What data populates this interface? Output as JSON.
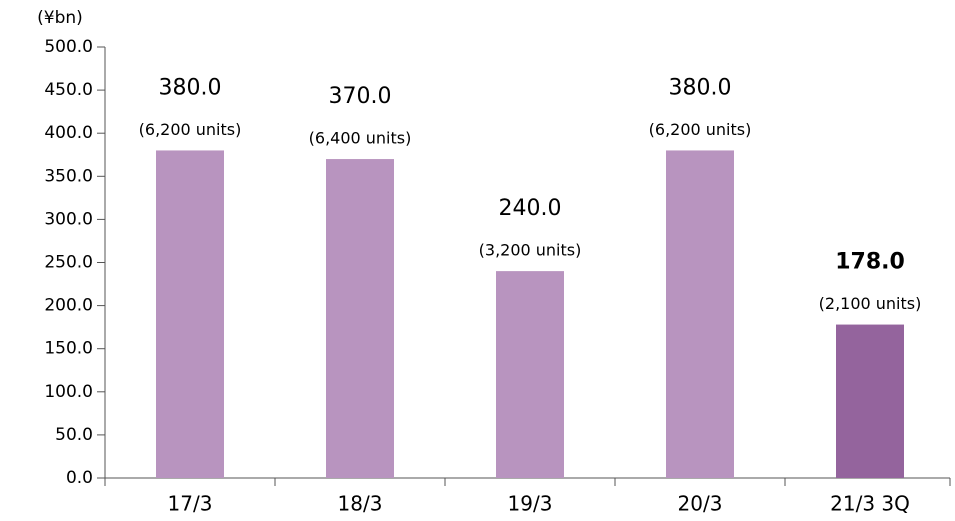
{
  "chart_data": {
    "type": "bar",
    "y_label": "(¥bn)",
    "categories": [
      "17/3",
      "18/3",
      "19/3",
      "20/3",
      "21/3 3Q"
    ],
    "values": [
      380,
      370,
      240,
      380,
      178
    ],
    "value_labels": [
      "380.0",
      "370.0",
      "240.0",
      "380.0",
      "178.0"
    ],
    "unit_labels": [
      "(6,200 units)",
      "(6,400 units)",
      "(3,200 units)",
      "(6,200 units)",
      "(2,100 units)"
    ],
    "colors": [
      "#b894bf",
      "#b894bf",
      "#b894bf",
      "#b894bf",
      "#94649d"
    ],
    "label_weight": [
      "normal",
      "normal",
      "normal",
      "normal",
      "bold"
    ],
    "ylim": [
      0,
      500
    ],
    "yticks": [
      {
        "value": 0,
        "label": "0.0"
      },
      {
        "value": 50,
        "label": "50.0"
      },
      {
        "value": 100,
        "label": "100.0"
      },
      {
        "value": 150,
        "label": "150.0"
      },
      {
        "value": 200,
        "label": "200.0"
      },
      {
        "value": 250,
        "label": "250.0"
      },
      {
        "value": 300,
        "label": "300.0"
      },
      {
        "value": 350,
        "label": "350.0"
      },
      {
        "value": 400,
        "label": "400.0"
      },
      {
        "value": 450,
        "label": "450.0"
      },
      {
        "value": 500,
        "label": "500.0"
      }
    ],
    "grid": false
  }
}
